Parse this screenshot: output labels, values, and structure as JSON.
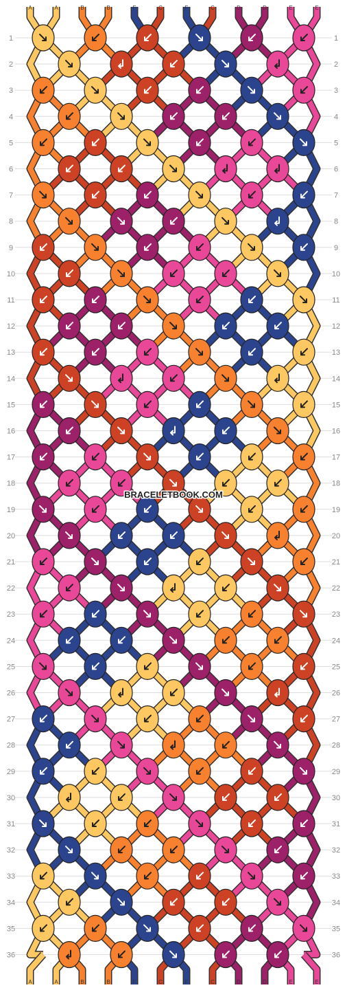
{
  "watermark": "BRACELETBOOK.COM",
  "colors": {
    "A": "#fdc862",
    "B": "#f8812f",
    "C": "#cd4224",
    "D": "#9c2168",
    "E": "#e94797",
    "F": "#2c448d"
  },
  "strings": [
    "A",
    "A",
    "B",
    "B",
    "F",
    "C",
    "F",
    "C",
    "D",
    "D",
    "E",
    "E"
  ],
  "rows": [
    {
      "num": "1",
      "knots": [
        [
          "A",
          "r"
        ],
        [
          "B",
          "l"
        ],
        [
          "C",
          "l"
        ],
        [
          "F",
          "r"
        ],
        [
          "D",
          "l"
        ],
        [
          "E",
          "l"
        ]
      ]
    },
    {
      "num": "2",
      "knots": [
        [
          "A",
          "r"
        ],
        [
          "C",
          "bl"
        ],
        [
          "C",
          "l"
        ],
        [
          "F",
          "r"
        ],
        [
          "E",
          "bl"
        ]
      ]
    },
    {
      "num": "3",
      "knots": [
        [
          "B",
          "l"
        ],
        [
          "A",
          "r"
        ],
        [
          "C",
          "l"
        ],
        [
          "D",
          "l"
        ],
        [
          "F",
          "r"
        ],
        [
          "E",
          "l"
        ]
      ]
    },
    {
      "num": "4",
      "knots": [
        [
          "B",
          "l"
        ],
        [
          "A",
          "r"
        ],
        [
          "D",
          "l"
        ],
        [
          "D",
          "l"
        ],
        [
          "F",
          "r"
        ]
      ]
    },
    {
      "num": "5",
      "knots": [
        [
          "B",
          "l"
        ],
        [
          "C",
          "l"
        ],
        [
          "A",
          "r"
        ],
        [
          "D",
          "l"
        ],
        [
          "E",
          "l"
        ],
        [
          "F",
          "r"
        ]
      ]
    },
    {
      "num": "6",
      "knots": [
        [
          "C",
          "l"
        ],
        [
          "C",
          "l"
        ],
        [
          "A",
          "r"
        ],
        [
          "E",
          "bl"
        ],
        [
          "E",
          "bl"
        ]
      ]
    },
    {
      "num": "7",
      "knots": [
        [
          "B",
          "r"
        ],
        [
          "C",
          "l"
        ],
        [
          "D",
          "l"
        ],
        [
          "A",
          "r"
        ],
        [
          "E",
          "l"
        ],
        [
          "F",
          "l"
        ]
      ]
    },
    {
      "num": "8",
      "knots": [
        [
          "B",
          "r"
        ],
        [
          "D",
          "r"
        ],
        [
          "D",
          "l"
        ],
        [
          "A",
          "r"
        ],
        [
          "F",
          "bl"
        ]
      ]
    },
    {
      "num": "9",
      "knots": [
        [
          "C",
          "l"
        ],
        [
          "B",
          "r"
        ],
        [
          "D",
          "l"
        ],
        [
          "E",
          "l"
        ],
        [
          "A",
          "r"
        ],
        [
          "F",
          "l"
        ]
      ]
    },
    {
      "num": "10",
      "knots": [
        [
          "C",
          "l"
        ],
        [
          "B",
          "r"
        ],
        [
          "E",
          "l"
        ],
        [
          "E",
          "l"
        ],
        [
          "A",
          "r"
        ]
      ]
    },
    {
      "num": "11",
      "knots": [
        [
          "C",
          "l"
        ],
        [
          "D",
          "l"
        ],
        [
          "B",
          "r"
        ],
        [
          "E",
          "l"
        ],
        [
          "F",
          "l"
        ],
        [
          "A",
          "r"
        ]
      ]
    },
    {
      "num": "12",
      "knots": [
        [
          "D",
          "l"
        ],
        [
          "D",
          "l"
        ],
        [
          "B",
          "r"
        ],
        [
          "F",
          "l"
        ],
        [
          "F",
          "l"
        ]
      ]
    },
    {
      "num": "13",
      "knots": [
        [
          "C",
          "l"
        ],
        [
          "D",
          "l"
        ],
        [
          "E",
          "l"
        ],
        [
          "B",
          "r"
        ],
        [
          "F",
          "l"
        ],
        [
          "A",
          "l"
        ]
      ]
    },
    {
      "num": "14",
      "knots": [
        [
          "C",
          "r"
        ],
        [
          "E",
          "bl"
        ],
        [
          "E",
          "l"
        ],
        [
          "B",
          "r"
        ],
        [
          "A",
          "bl"
        ]
      ]
    },
    {
      "num": "15",
      "knots": [
        [
          "D",
          "l"
        ],
        [
          "C",
          "r"
        ],
        [
          "E",
          "l"
        ],
        [
          "F",
          "l"
        ],
        [
          "B",
          "r"
        ],
        [
          "A",
          "l"
        ]
      ]
    },
    {
      "num": "16",
      "knots": [
        [
          "D",
          "l"
        ],
        [
          "C",
          "r"
        ],
        [
          "F",
          "bl"
        ],
        [
          "F",
          "l"
        ],
        [
          "B",
          "r"
        ]
      ]
    },
    {
      "num": "17",
      "knots": [
        [
          "D",
          "l"
        ],
        [
          "E",
          "l"
        ],
        [
          "C",
          "r"
        ],
        [
          "F",
          "l"
        ],
        [
          "A",
          "l"
        ],
        [
          "B",
          "l"
        ]
      ]
    },
    {
      "num": "18",
      "knots": [
        [
          "E",
          "l"
        ],
        [
          "E",
          "l"
        ],
        [
          "C",
          "r"
        ],
        [
          "A",
          "l"
        ],
        [
          "A",
          "l"
        ]
      ]
    },
    {
      "num": "19",
      "knots": [
        [
          "D",
          "r"
        ],
        [
          "E",
          "l"
        ],
        [
          "F",
          "l"
        ],
        [
          "C",
          "r"
        ],
        [
          "A",
          "l"
        ],
        [
          "B",
          "l"
        ]
      ]
    },
    {
      "num": "20",
      "knots": [
        [
          "D",
          "r"
        ],
        [
          "F",
          "l"
        ],
        [
          "F",
          "l"
        ],
        [
          "C",
          "r"
        ],
        [
          "B",
          "bl"
        ]
      ]
    },
    {
      "num": "21",
      "knots": [
        [
          "E",
          "l"
        ],
        [
          "D",
          "r"
        ],
        [
          "F",
          "l"
        ],
        [
          "A",
          "l"
        ],
        [
          "C",
          "r"
        ],
        [
          "B",
          "l"
        ]
      ]
    },
    {
      "num": "22",
      "knots": [
        [
          "E",
          "l"
        ],
        [
          "D",
          "r"
        ],
        [
          "A",
          "bl"
        ],
        [
          "A",
          "l"
        ],
        [
          "C",
          "r"
        ]
      ]
    },
    {
      "num": "23",
      "knots": [
        [
          "E",
          "l"
        ],
        [
          "F",
          "l"
        ],
        [
          "D",
          "r"
        ],
        [
          "A",
          "l"
        ],
        [
          "B",
          "l"
        ],
        [
          "C",
          "r"
        ]
      ]
    },
    {
      "num": "24",
      "knots": [
        [
          "F",
          "l"
        ],
        [
          "F",
          "l"
        ],
        [
          "D",
          "r"
        ],
        [
          "B",
          "l"
        ],
        [
          "B",
          "l"
        ]
      ]
    },
    {
      "num": "25",
      "knots": [
        [
          "E",
          "r"
        ],
        [
          "F",
          "l"
        ],
        [
          "A",
          "l"
        ],
        [
          "D",
          "r"
        ],
        [
          "B",
          "l"
        ],
        [
          "C",
          "l"
        ]
      ]
    },
    {
      "num": "26",
      "knots": [
        [
          "E",
          "r"
        ],
        [
          "A",
          "bl"
        ],
        [
          "A",
          "l"
        ],
        [
          "D",
          "r"
        ],
        [
          "C",
          "bl"
        ]
      ]
    },
    {
      "num": "27",
      "knots": [
        [
          "F",
          "l"
        ],
        [
          "E",
          "r"
        ],
        [
          "A",
          "l"
        ],
        [
          "B",
          "l"
        ],
        [
          "D",
          "r"
        ],
        [
          "C",
          "l"
        ]
      ]
    },
    {
      "num": "28",
      "knots": [
        [
          "F",
          "l"
        ],
        [
          "E",
          "r"
        ],
        [
          "B",
          "bl"
        ],
        [
          "B",
          "l"
        ],
        [
          "D",
          "r"
        ]
      ]
    },
    {
      "num": "29",
      "knots": [
        [
          "F",
          "l"
        ],
        [
          "A",
          "l"
        ],
        [
          "E",
          "r"
        ],
        [
          "B",
          "l"
        ],
        [
          "C",
          "l"
        ],
        [
          "D",
          "r"
        ]
      ]
    },
    {
      "num": "30",
      "knots": [
        [
          "A",
          "bl"
        ],
        [
          "A",
          "l"
        ],
        [
          "E",
          "r"
        ],
        [
          "C",
          "l"
        ],
        [
          "C",
          "l"
        ]
      ]
    },
    {
      "num": "31",
      "knots": [
        [
          "F",
          "r"
        ],
        [
          "A",
          "l"
        ],
        [
          "B",
          "l"
        ],
        [
          "E",
          "r"
        ],
        [
          "C",
          "l"
        ],
        [
          "D",
          "l"
        ]
      ]
    },
    {
      "num": "32",
      "knots": [
        [
          "F",
          "r"
        ],
        [
          "B",
          "l"
        ],
        [
          "B",
          "l"
        ],
        [
          "E",
          "r"
        ],
        [
          "D",
          "l"
        ]
      ]
    },
    {
      "num": "33",
      "knots": [
        [
          "A",
          "l"
        ],
        [
          "F",
          "r"
        ],
        [
          "B",
          "l"
        ],
        [
          "C",
          "l"
        ],
        [
          "E",
          "r"
        ],
        [
          "D",
          "l"
        ]
      ]
    },
    {
      "num": "34",
      "knots": [
        [
          "A",
          "l"
        ],
        [
          "F",
          "r"
        ],
        [
          "C",
          "l"
        ],
        [
          "C",
          "l"
        ],
        [
          "E",
          "r"
        ]
      ]
    },
    {
      "num": "35",
      "knots": [
        [
          "A",
          "l"
        ],
        [
          "B",
          "l"
        ],
        [
          "F",
          "r"
        ],
        [
          "C",
          "l"
        ],
        [
          "D",
          "l"
        ],
        [
          "E",
          "r"
        ]
      ]
    },
    {
      "num": "36",
      "knots": [
        [
          "B",
          "bl"
        ],
        [
          "B",
          "l"
        ],
        [
          "F",
          "r"
        ],
        [
          "D",
          "l"
        ],
        [
          "D",
          "l"
        ]
      ]
    }
  ],
  "bottom_strings": [
    "A",
    "A",
    "B",
    "B",
    "F",
    "C",
    "F",
    "C",
    "D",
    "D",
    "E",
    "E"
  ]
}
